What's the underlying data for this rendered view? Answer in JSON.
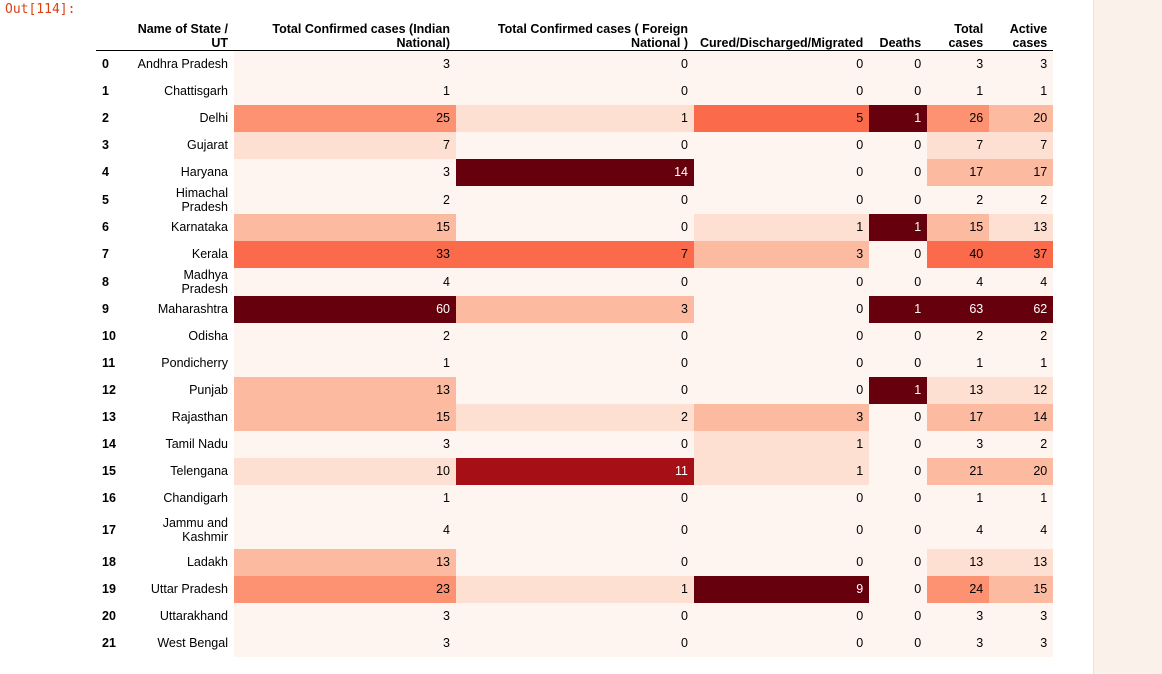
{
  "prompt": "Out[114]:",
  "colors": {
    "scale": [
      "#fff5f0",
      "#fde0d2",
      "#fcbba1",
      "#fc9272",
      "#fb6a4a",
      "#e0462f",
      "#a50f15",
      "#67000d"
    ],
    "prompt": "#d84315"
  },
  "table": {
    "columns": [
      "",
      "Name of State / UT",
      "Total Confirmed cases (Indian National)",
      "Total Confirmed cases ( Foreign National )",
      "Cured/Discharged/Migrated",
      "Deaths",
      "Total cases",
      "Active cases"
    ],
    "rows": [
      {
        "idx": "0",
        "state": "Andhra Pradesh",
        "indian": 3,
        "foreign": 0,
        "cured": 0,
        "deaths": 0,
        "total": 3,
        "active": 3
      },
      {
        "idx": "1",
        "state": "Chattisgarh",
        "indian": 1,
        "foreign": 0,
        "cured": 0,
        "deaths": 0,
        "total": 1,
        "active": 1
      },
      {
        "idx": "2",
        "state": "Delhi",
        "indian": 25,
        "foreign": 1,
        "cured": 5,
        "deaths": 1,
        "total": 26,
        "active": 20
      },
      {
        "idx": "3",
        "state": "Gujarat",
        "indian": 7,
        "foreign": 0,
        "cured": 0,
        "deaths": 0,
        "total": 7,
        "active": 7
      },
      {
        "idx": "4",
        "state": "Haryana",
        "indian": 3,
        "foreign": 14,
        "cured": 0,
        "deaths": 0,
        "total": 17,
        "active": 17
      },
      {
        "idx": "5",
        "state": "Himachal Pradesh",
        "indian": 2,
        "foreign": 0,
        "cured": 0,
        "deaths": 0,
        "total": 2,
        "active": 2
      },
      {
        "idx": "6",
        "state": "Karnataka",
        "indian": 15,
        "foreign": 0,
        "cured": 1,
        "deaths": 1,
        "total": 15,
        "active": 13
      },
      {
        "idx": "7",
        "state": "Kerala",
        "indian": 33,
        "foreign": 7,
        "cured": 3,
        "deaths": 0,
        "total": 40,
        "active": 37
      },
      {
        "idx": "8",
        "state": "Madhya Pradesh",
        "indian": 4,
        "foreign": 0,
        "cured": 0,
        "deaths": 0,
        "total": 4,
        "active": 4
      },
      {
        "idx": "9",
        "state": "Maharashtra",
        "indian": 60,
        "foreign": 3,
        "cured": 0,
        "deaths": 1,
        "total": 63,
        "active": 62
      },
      {
        "idx": "10",
        "state": "Odisha",
        "indian": 2,
        "foreign": 0,
        "cured": 0,
        "deaths": 0,
        "total": 2,
        "active": 2
      },
      {
        "idx": "11",
        "state": "Pondicherry",
        "indian": 1,
        "foreign": 0,
        "cured": 0,
        "deaths": 0,
        "total": 1,
        "active": 1
      },
      {
        "idx": "12",
        "state": "Punjab",
        "indian": 13,
        "foreign": 0,
        "cured": 0,
        "deaths": 1,
        "total": 13,
        "active": 12
      },
      {
        "idx": "13",
        "state": "Rajasthan",
        "indian": 15,
        "foreign": 2,
        "cured": 3,
        "deaths": 0,
        "total": 17,
        "active": 14
      },
      {
        "idx": "14",
        "state": "Tamil Nadu",
        "indian": 3,
        "foreign": 0,
        "cured": 1,
        "deaths": 0,
        "total": 3,
        "active": 2
      },
      {
        "idx": "15",
        "state": "Telengana",
        "indian": 10,
        "foreign": 11,
        "cured": 1,
        "deaths": 0,
        "total": 21,
        "active": 20
      },
      {
        "idx": "16",
        "state": "Chandigarh",
        "indian": 1,
        "foreign": 0,
        "cured": 0,
        "deaths": 0,
        "total": 1,
        "active": 1
      },
      {
        "idx": "17",
        "state": "Jammu and Kashmir",
        "indian": 4,
        "foreign": 0,
        "cured": 0,
        "deaths": 0,
        "total": 4,
        "active": 4
      },
      {
        "idx": "18",
        "state": "Ladakh",
        "indian": 13,
        "foreign": 0,
        "cured": 0,
        "deaths": 0,
        "total": 13,
        "active": 13
      },
      {
        "idx": "19",
        "state": "Uttar Pradesh",
        "indian": 23,
        "foreign": 1,
        "cured": 9,
        "deaths": 0,
        "total": 24,
        "active": 15
      },
      {
        "idx": "20",
        "state": "Uttarakhand",
        "indian": 3,
        "foreign": 0,
        "cured": 0,
        "deaths": 0,
        "total": 3,
        "active": 3
      },
      {
        "idx": "21",
        "state": "West Bengal",
        "indian": 3,
        "foreign": 0,
        "cured": 0,
        "deaths": 0,
        "total": 3,
        "active": 3
      }
    ]
  }
}
